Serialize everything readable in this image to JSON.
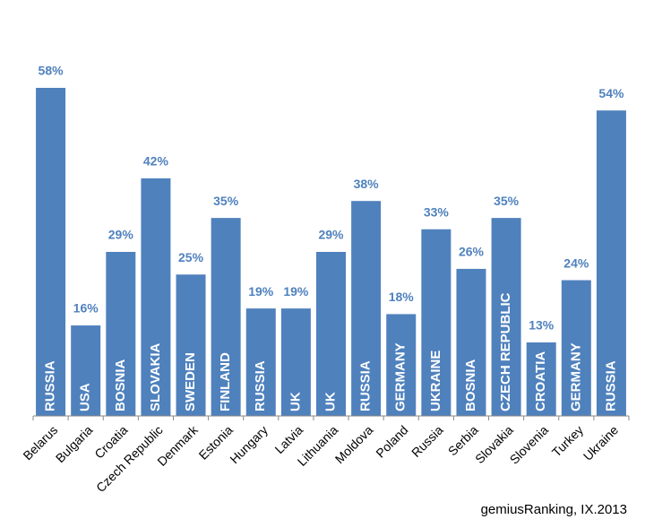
{
  "chart_data": {
    "type": "bar",
    "categories": [
      "Belarus",
      "Bulgaria",
      "Croatia",
      "Czech Republic",
      "Denmark",
      "Estonia",
      "Hungary",
      "Latvia",
      "Lithuania",
      "Moldova",
      "Poland",
      "Russia",
      "Serbia",
      "Slovakia",
      "Slovenia",
      "Turkey",
      "Ukraine"
    ],
    "values": [
      58,
      16,
      29,
      42,
      25,
      35,
      19,
      19,
      29,
      38,
      18,
      33,
      26,
      35,
      13,
      24,
      54
    ],
    "value_labels": [
      "58%",
      "16%",
      "29%",
      "42%",
      "25%",
      "35%",
      "19%",
      "19%",
      "29%",
      "38%",
      "18%",
      "33%",
      "26%",
      "35%",
      "13%",
      "24%",
      "54%"
    ],
    "bar_labels": [
      "RUSSIA",
      "USA",
      "BOSNIA",
      "SLOVAKIA",
      "SWEDEN",
      "FINLAND",
      "RUSSIA",
      "UK",
      "UK",
      "RUSSIA",
      "GERMANY",
      "UKRAINE",
      "BOSNIA",
      "CZECH REPUBLIC",
      "CROATIA",
      "GERMANY",
      "RUSSIA"
    ],
    "color": "#4f81bd",
    "source": "gemiusRanking, IX.2013"
  }
}
